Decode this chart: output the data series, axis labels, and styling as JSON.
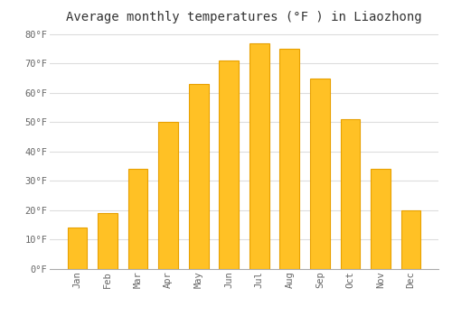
{
  "months": [
    "Jan",
    "Feb",
    "Mar",
    "Apr",
    "May",
    "Jun",
    "Jul",
    "Aug",
    "Sep",
    "Oct",
    "Nov",
    "Dec"
  ],
  "values": [
    14,
    19,
    34,
    50,
    63,
    71,
    77,
    75,
    65,
    51,
    34,
    20
  ],
  "bar_color": "#FFC125",
  "bar_edge_color": "#E8A000",
  "title": "Average monthly temperatures (°F ) in Liaozhong",
  "title_fontsize": 10,
  "ylim": [
    0,
    82
  ],
  "yticks": [
    0,
    10,
    20,
    30,
    40,
    50,
    60,
    70,
    80
  ],
  "ytick_labels": [
    "0°F",
    "10°F",
    "20°F",
    "30°F",
    "40°F",
    "50°F",
    "60°F",
    "70°F",
    "80°F"
  ],
  "background_color": "#FFFFFF",
  "grid_color": "#DDDDDD",
  "tick_label_color": "#666666",
  "title_color": "#333333",
  "font_family": "monospace",
  "bar_width": 0.65
}
